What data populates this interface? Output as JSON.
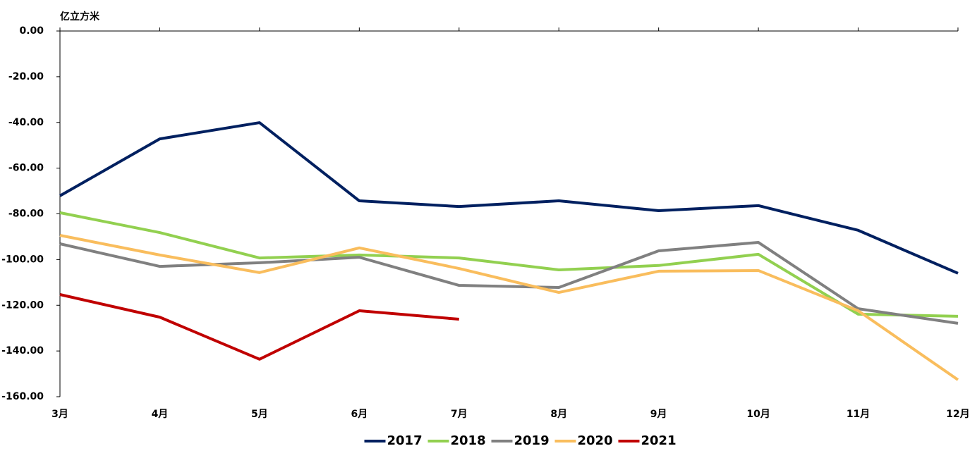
{
  "chart_data": {
    "type": "line",
    "y_label": "亿立方米",
    "categories": [
      "3月",
      "4月",
      "5月",
      "6月",
      "7月",
      "8月",
      "9月",
      "10月",
      "11月",
      "12月"
    ],
    "series": [
      {
        "name": "2017",
        "color": "#002060",
        "values": [
          -72.1,
          -47.2,
          -40.1,
          -74.3,
          -76.8,
          -74.3,
          -78.6,
          -76.4,
          -87.2,
          -106.0
        ]
      },
      {
        "name": "2018",
        "color": "#92d050",
        "values": [
          -79.5,
          -88.2,
          -99.3,
          -98.0,
          -99.3,
          -104.5,
          -102.6,
          -97.7,
          -123.9,
          -124.8
        ]
      },
      {
        "name": "2019",
        "color": "#808080",
        "values": [
          -93.1,
          -103.0,
          -101.4,
          -99.0,
          -111.3,
          -112.2,
          -96.2,
          -92.5,
          -121.5,
          -127.9
        ]
      },
      {
        "name": "2020",
        "color": "#f9bd5d",
        "values": [
          -89.4,
          -98.0,
          -105.7,
          -94.9,
          -103.9,
          -114.4,
          -105.1,
          -104.8,
          -122.4,
          -152.6
        ]
      },
      {
        "name": "2021",
        "color": "#c00000",
        "values": [
          -115.3,
          -125.2,
          -143.6,
          -122.4,
          -126.1,
          null,
          null,
          null,
          null,
          null
        ]
      }
    ],
    "ylim": [
      -160,
      0
    ],
    "yticks": [
      {
        "value": 0,
        "label": "0.00"
      },
      {
        "value": -20,
        "label": "-20.00"
      },
      {
        "value": -40,
        "label": "-40.00"
      },
      {
        "value": -60,
        "label": "-60.00"
      },
      {
        "value": -80,
        "label": "-80.00"
      },
      {
        "value": -100,
        "label": "-100.00"
      },
      {
        "value": -120,
        "label": "-120.00"
      },
      {
        "value": -140,
        "label": "-140.00"
      },
      {
        "value": -160,
        "label": "-160.00"
      }
    ],
    "legend": "bottom"
  }
}
